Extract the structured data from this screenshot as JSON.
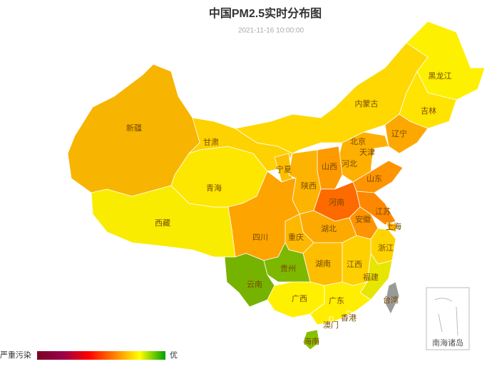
{
  "title": "中国PM2.5实时分布图",
  "subtitle": "2021-11-16 10:00:00",
  "regions": [
    {
      "name": "新疆",
      "color": "#f7b400"
    },
    {
      "name": "西藏",
      "color": "#f9ec00"
    },
    {
      "name": "青海",
      "color": "#fde600"
    },
    {
      "name": "甘肃",
      "color": "#fdd200"
    },
    {
      "name": "内蒙古",
      "color": "#fed800"
    },
    {
      "name": "黑龙江",
      "color": "#fdf000"
    },
    {
      "name": "吉林",
      "color": "#fee400"
    },
    {
      "name": "辽宁",
      "color": "#fda800"
    },
    {
      "name": "北京",
      "color": "#fec600"
    },
    {
      "name": "天津",
      "color": "#feb800"
    },
    {
      "name": "河北",
      "color": "#feb000"
    },
    {
      "name": "山西",
      "color": "#fd9a00"
    },
    {
      "name": "山东",
      "color": "#fd9400"
    },
    {
      "name": "宁夏",
      "color": "#fdc000"
    },
    {
      "name": "陕西",
      "color": "#fdb400"
    },
    {
      "name": "河南",
      "color": "#fc6a00"
    },
    {
      "name": "江苏",
      "color": "#fd8800"
    },
    {
      "name": "安徽",
      "color": "#fd9400"
    },
    {
      "name": "上海",
      "color": "#fdb000"
    },
    {
      "name": "湖北",
      "color": "#fdaa00"
    },
    {
      "name": "四川",
      "color": "#fda400"
    },
    {
      "name": "重庆",
      "color": "#fdb800"
    },
    {
      "name": "浙江",
      "color": "#fed400"
    },
    {
      "name": "湖南",
      "color": "#fdbe00"
    },
    {
      "name": "江西",
      "color": "#fed000"
    },
    {
      "name": "贵州",
      "color": "#7cb800"
    },
    {
      "name": "云南",
      "color": "#76b300"
    },
    {
      "name": "福建",
      "color": "#e6e600"
    },
    {
      "name": "广西",
      "color": "#fff000"
    },
    {
      "name": "广东",
      "color": "#ffee00"
    },
    {
      "name": "台湾",
      "color": "#9a9a9a"
    },
    {
      "name": "香港",
      "color": "#ffee00"
    },
    {
      "name": "澳门",
      "color": "#ffee00"
    },
    {
      "name": "海南",
      "color": "#88c000"
    }
  ],
  "inset_label": "南海诸岛",
  "legend": {
    "high": "严重污染",
    "low": "优",
    "colors": [
      "#7e0023",
      "#99004c",
      "#ff0000",
      "#ff7e00",
      "#ffff00",
      "#00a000"
    ]
  }
}
